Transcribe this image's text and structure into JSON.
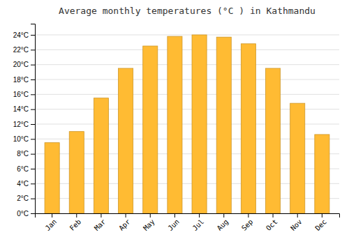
{
  "chart_data": {
    "type": "bar",
    "title": "Average monthly temperatures (°C ) in Kathmandu",
    "categories": [
      "Jan",
      "Feb",
      "Mar",
      "Apr",
      "May",
      "Jun",
      "Jul",
      "Aug",
      "Sep",
      "Oct",
      "Nov",
      "Dec"
    ],
    "values": [
      9.5,
      11.0,
      15.5,
      19.5,
      22.5,
      23.8,
      24.0,
      23.7,
      22.8,
      19.5,
      14.8,
      10.6
    ],
    "color": "#FFBB33",
    "ylim": [
      0,
      25.5
    ],
    "yticks": [
      {
        "value": 0,
        "label": "0°C"
      },
      {
        "value": 2,
        "label": "2°C"
      },
      {
        "value": 4,
        "label": "4°C"
      },
      {
        "value": 6,
        "label": "6°C"
      },
      {
        "value": 8,
        "label": "8°C"
      },
      {
        "value": 10,
        "label": "10°C"
      },
      {
        "value": 12,
        "label": "12°C"
      },
      {
        "value": 14,
        "label": "14°C"
      },
      {
        "value": 16,
        "label": "16°C"
      },
      {
        "value": 18,
        "label": "18°C"
      },
      {
        "value": 20,
        "label": "20°C"
      },
      {
        "value": 22,
        "label": "22°C"
      },
      {
        "value": 24,
        "label": "24°C"
      }
    ],
    "grid": true
  }
}
